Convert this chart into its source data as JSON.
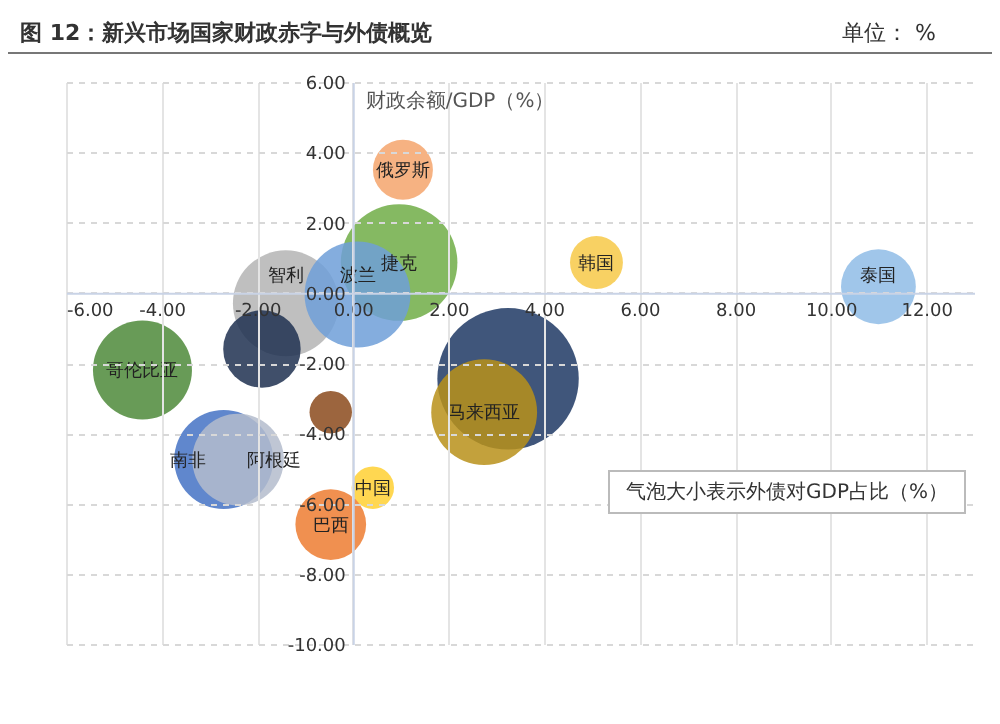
{
  "chart_data": {
    "type": "bubble",
    "title": "图 12：新兴市场国家财政赤字与外债概览",
    "subtitle": "单位： %",
    "ylabel": "财政余额/GDP（%）",
    "annotations": [
      "气泡大小表示外债对GDP占比（%）"
    ],
    "xlim": [
      -6,
      13
    ],
    "ylim": [
      -10,
      6
    ],
    "grid": true,
    "xticks": [
      {
        "value": -6,
        "label": "-6.00"
      },
      {
        "value": -4,
        "label": "-4.00"
      },
      {
        "value": -2,
        "label": "-2.00"
      },
      {
        "value": 0,
        "label": "0.00"
      },
      {
        "value": 2,
        "label": "2.00"
      },
      {
        "value": 4,
        "label": "4.00"
      },
      {
        "value": 6,
        "label": "6.00"
      },
      {
        "value": 8,
        "label": "8.00"
      },
      {
        "value": 10,
        "label": "10.00"
      },
      {
        "value": 12,
        "label": "12.00"
      }
    ],
    "yticks": [
      {
        "value": -10,
        "label": "-10.00"
      },
      {
        "value": -8,
        "label": "-8.00"
      },
      {
        "value": -6,
        "label": "-6.00"
      },
      {
        "value": -4,
        "label": "-4.00"
      },
      {
        "value": -2,
        "label": "-2.00"
      },
      {
        "value": 0,
        "label": "0.00"
      },
      {
        "value": 2,
        "label": "2.00"
      },
      {
        "value": 4,
        "label": "4.00"
      },
      {
        "value": 6,
        "label": "6.00"
      }
    ],
    "series": [
      {
        "name": "俄罗斯",
        "color": "#f4a46c",
        "x": [
          1.05
        ],
        "values": [
          3.5
        ],
        "sizes": [
          0.18
        ]
      },
      {
        "color": "#1f3864",
        "x": [
          3.25
        ],
        "values": [
          -2.45
        ],
        "sizes": [
          1
        ]
      },
      {
        "name": "马来西亚",
        "color": "#b8901a",
        "x": [
          2.75
        ],
        "values": [
          -3.4
        ],
        "sizes": [
          0.56
        ]
      },
      {
        "name": "捷克",
        "color": "#70ad47",
        "x": [
          0.97
        ],
        "values": [
          0.86
        ],
        "sizes": [
          0.68
        ]
      },
      {
        "name": "韩国",
        "color": "#f7c948",
        "x": [
          5.1
        ],
        "values": [
          0.86
        ],
        "sizes": [
          0.14
        ]
      },
      {
        "name": "泰国",
        "color": "#8fbce6",
        "x": [
          11.0
        ],
        "values": [
          0.17
        ],
        "sizes": [
          0.28
        ]
      },
      {
        "name": "智利",
        "color": "#b4b4b4",
        "x": [
          -1.4
        ],
        "values": [
          -0.3
        ],
        "sizes": [
          0.56
        ]
      },
      {
        "name": "波兰",
        "color": "#6f9fd8",
        "x": [
          0.1
        ],
        "values": [
          -0.05
        ],
        "sizes": [
          0.56
        ]
      },
      {
        "name": "哥伦比亚",
        "color": "#4e8a3a",
        "x": [
          -4.4
        ],
        "values": [
          -2.2
        ],
        "sizes": [
          0.49
        ]
      },
      {
        "color": "#1f3050",
        "x": [
          -1.9
        ],
        "values": [
          -1.6
        ],
        "sizes": [
          0.3
        ]
      },
      {
        "color": "#8b4a1c",
        "x": [
          -0.46
        ],
        "values": [
          -3.4
        ],
        "sizes": [
          0.09
        ]
      },
      {
        "name": "南非",
        "color": "#4472c4",
        "x": [
          -2.7
        ],
        "values": [
          -4.75
        ],
        "sizes": [
          0.49
        ]
      },
      {
        "name": "阿根廷",
        "color": "#b4bccc",
        "x": [
          -2.4
        ],
        "values": [
          -4.75
        ],
        "sizes": [
          0.42
        ]
      },
      {
        "name": "中国",
        "color": "#ffd033",
        "x": [
          0.42
        ],
        "values": [
          -5.55
        ],
        "sizes": [
          0.09
        ]
      },
      {
        "name": "巴西",
        "color": "#ed7d31",
        "x": [
          -0.46
        ],
        "values": [
          -6.6
        ],
        "sizes": [
          0.25
        ]
      }
    ]
  }
}
